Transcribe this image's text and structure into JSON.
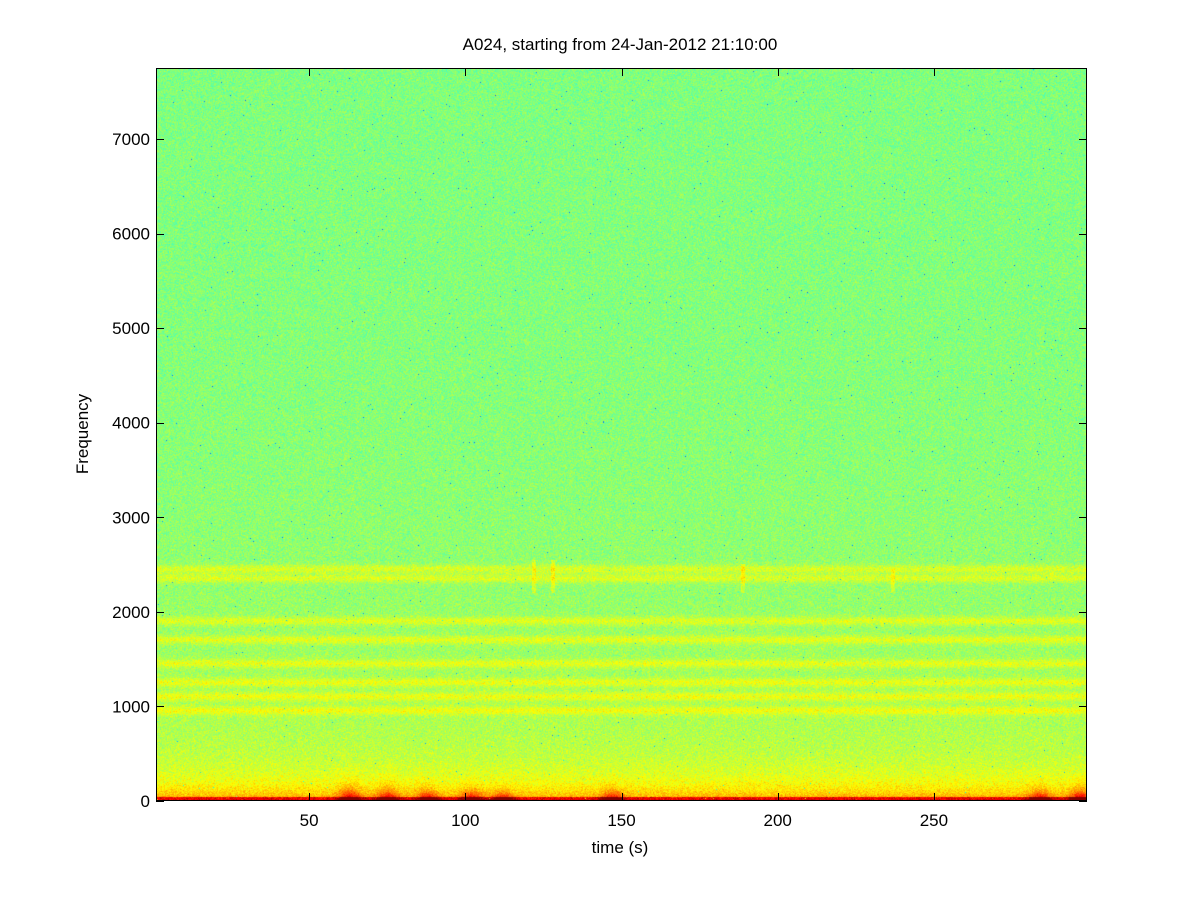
{
  "chart_data": {
    "type": "heatmap",
    "title": "A024, starting from 24-Jan-2012 21:10:00",
    "xlabel": "time (s)",
    "ylabel": "Frequency",
    "xlim": [
      1,
      299
    ],
    "ylim": [
      0,
      7750
    ],
    "x_ticks": [
      50,
      100,
      150,
      200,
      250
    ],
    "y_ticks": [
      0,
      1000,
      2000,
      3000,
      4000,
      5000,
      6000,
      7000
    ],
    "colormap": "jet",
    "colors": {
      "background_high_freq": "#5ee89a",
      "band_level": "#d8f040",
      "low_freq_level": "#f2ee18",
      "peak_level": "#b81a10"
    },
    "horizontal_bands_hz": [
      950,
      1100,
      1250,
      1450,
      1700,
      1900,
      2350,
      2450
    ],
    "low_frequency_energy_below_hz": 400,
    "transient_events": [
      {
        "time": 63,
        "freq_max": 150
      },
      {
        "time": 75,
        "freq_max": 130
      },
      {
        "time": 88,
        "freq_max": 110
      },
      {
        "time": 102,
        "freq_max": 110
      },
      {
        "time": 112,
        "freq_max": 90
      },
      {
        "time": 122,
        "freq_max": 2550
      },
      {
        "time": 128,
        "freq_max": 2550
      },
      {
        "time": 147,
        "freq_max": 110
      },
      {
        "time": 189,
        "freq_max": 2500
      },
      {
        "time": 237,
        "freq_max": 2450
      },
      {
        "time": 284,
        "freq_max": 110
      },
      {
        "time": 297,
        "freq_max": 130
      }
    ]
  }
}
